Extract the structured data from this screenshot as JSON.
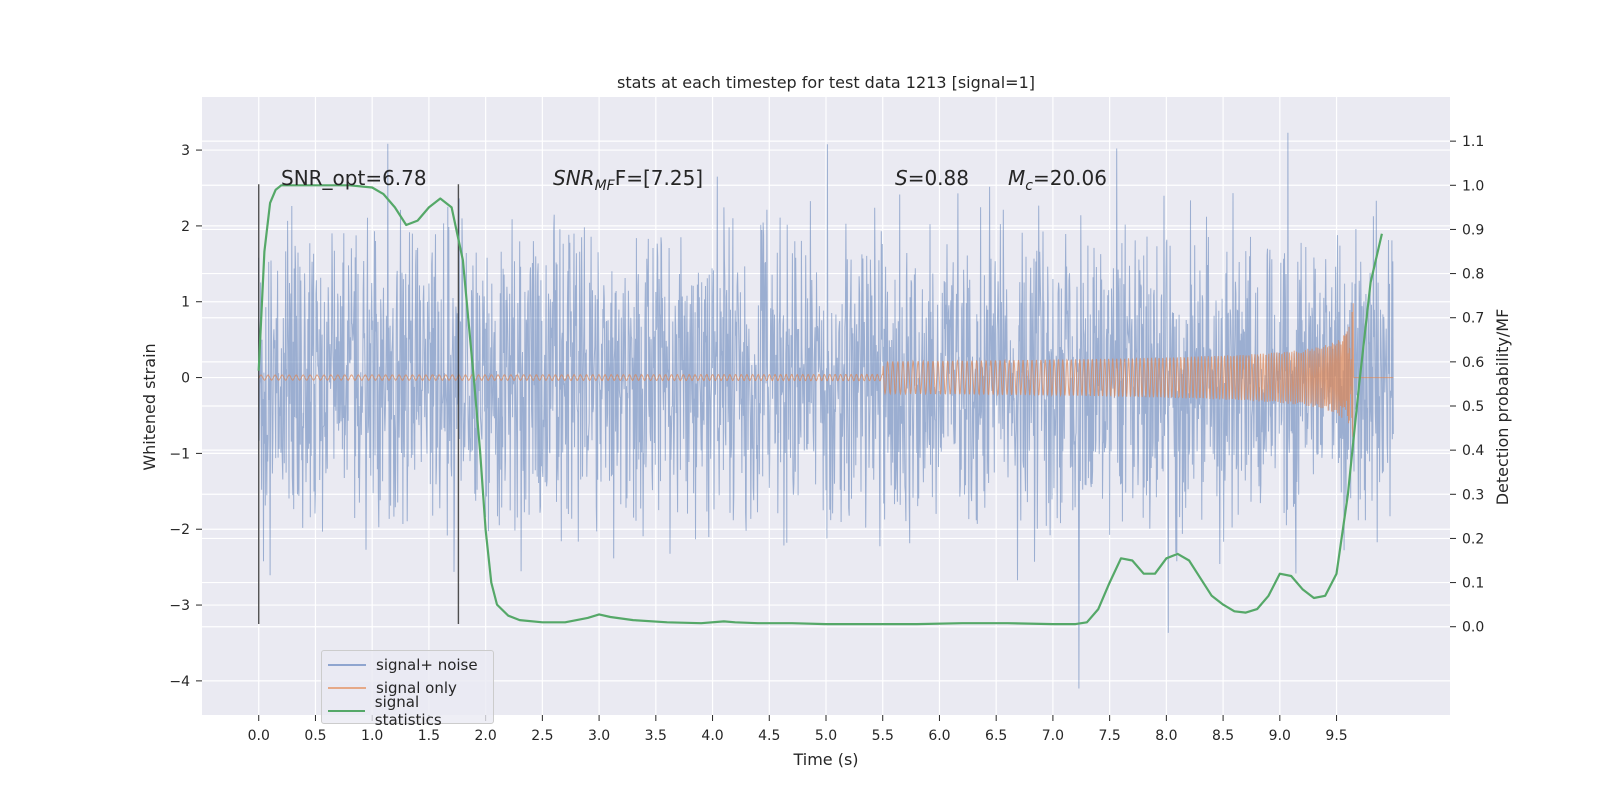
{
  "chart_data": {
    "type": "line",
    "title": "stats at each timestep for test data 1213 [signal=1]",
    "xlabel": "Time (s)",
    "ylabel_left": "Whitened strain",
    "ylabel_right": "Detection probability/MF",
    "xlim": [
      -0.5,
      10.5
    ],
    "ylim_left": [
      -4.45,
      3.7
    ],
    "ylim_right": [
      -0.2,
      1.2
    ],
    "x_ticks": [
      "0.0",
      "0.5",
      "1.0",
      "1.5",
      "2.0",
      "2.5",
      "3.0",
      "3.5",
      "4.0",
      "4.5",
      "5.0",
      "5.5",
      "6.0",
      "6.5",
      "7.0",
      "7.5",
      "8.0",
      "8.5",
      "9.0",
      "9.5"
    ],
    "y_ticks_left": [
      "3",
      "2",
      "1",
      "0",
      "−1",
      "−2",
      "−3",
      "−4"
    ],
    "y_ticks_right": [
      "1.1",
      "1.0",
      "0.9",
      "0.8",
      "0.7",
      "0.6",
      "0.5",
      "0.4",
      "0.3",
      "0.2",
      "0.1",
      "0.0"
    ],
    "grid": true,
    "legend_position": "lower-left",
    "series": [
      {
        "name": "signal+ noise",
        "color": "#4c72b0",
        "axis": "left",
        "description_values": {
          "envelope_min": -4.1,
          "envelope_max": 3.35,
          "x_range": [
            0,
            10
          ]
        }
      },
      {
        "name": "signal only",
        "color": "#dd8452",
        "axis": "left",
        "description_values": {
          "chirp_peak_time": 9.65,
          "peak_amplitude": 1.2
        }
      },
      {
        "name": "signal statistics",
        "color": "#55a868",
        "axis": "right",
        "x": [
          0.0,
          0.05,
          0.1,
          0.15,
          0.2,
          0.3,
          0.5,
          0.8,
          1.0,
          1.1,
          1.2,
          1.3,
          1.4,
          1.5,
          1.6,
          1.7,
          1.8,
          1.9,
          1.95,
          2.0,
          2.05,
          2.1,
          2.2,
          2.3,
          2.5,
          2.7,
          2.9,
          3.0,
          3.1,
          3.3,
          3.6,
          3.9,
          4.1,
          4.2,
          4.4,
          4.7,
          5.0,
          5.2,
          5.5,
          5.8,
          6.2,
          6.6,
          7.0,
          7.2,
          7.3,
          7.4,
          7.5,
          7.6,
          7.7,
          7.8,
          7.9,
          8.0,
          8.1,
          8.2,
          8.3,
          8.4,
          8.5,
          8.6,
          8.7,
          8.8,
          8.9,
          9.0,
          9.1,
          9.2,
          9.3,
          9.4,
          9.5,
          9.6,
          9.7,
          9.8,
          9.9
        ],
        "y": [
          0.58,
          0.85,
          0.96,
          0.99,
          1.0,
          1.0,
          1.0,
          1.0,
          0.995,
          0.98,
          0.95,
          0.91,
          0.92,
          0.95,
          0.97,
          0.95,
          0.83,
          0.55,
          0.4,
          0.22,
          0.1,
          0.05,
          0.025,
          0.015,
          0.01,
          0.01,
          0.02,
          0.028,
          0.022,
          0.015,
          0.01,
          0.008,
          0.012,
          0.01,
          0.008,
          0.008,
          0.006,
          0.006,
          0.006,
          0.006,
          0.008,
          0.008,
          0.006,
          0.006,
          0.01,
          0.04,
          0.1,
          0.155,
          0.15,
          0.12,
          0.12,
          0.155,
          0.165,
          0.15,
          0.11,
          0.07,
          0.05,
          0.035,
          0.032,
          0.04,
          0.07,
          0.12,
          0.115,
          0.085,
          0.065,
          0.07,
          0.12,
          0.3,
          0.55,
          0.78,
          0.89
        ]
      }
    ],
    "vertical_lines": [
      0.0,
      1.76
    ],
    "annotations": [
      {
        "label": "snr-opt",
        "text": "SNR_opt=6.78"
      },
      {
        "label": "snr-mf",
        "text_parts": [
          "SNR",
          "MF",
          "F=[7.25]"
        ]
      },
      {
        "label": "s-stat",
        "text_parts": [
          "S",
          "=0.88"
        ]
      },
      {
        "label": "mc-stat",
        "text_parts": [
          "M",
          "c",
          "=20.06"
        ]
      }
    ]
  },
  "colors": {
    "background": "#eaeaf2",
    "grid": "#ffffff",
    "noise": "#4c72b0",
    "signal": "#dd8452",
    "statistics": "#55a868",
    "vline": "#333333"
  }
}
